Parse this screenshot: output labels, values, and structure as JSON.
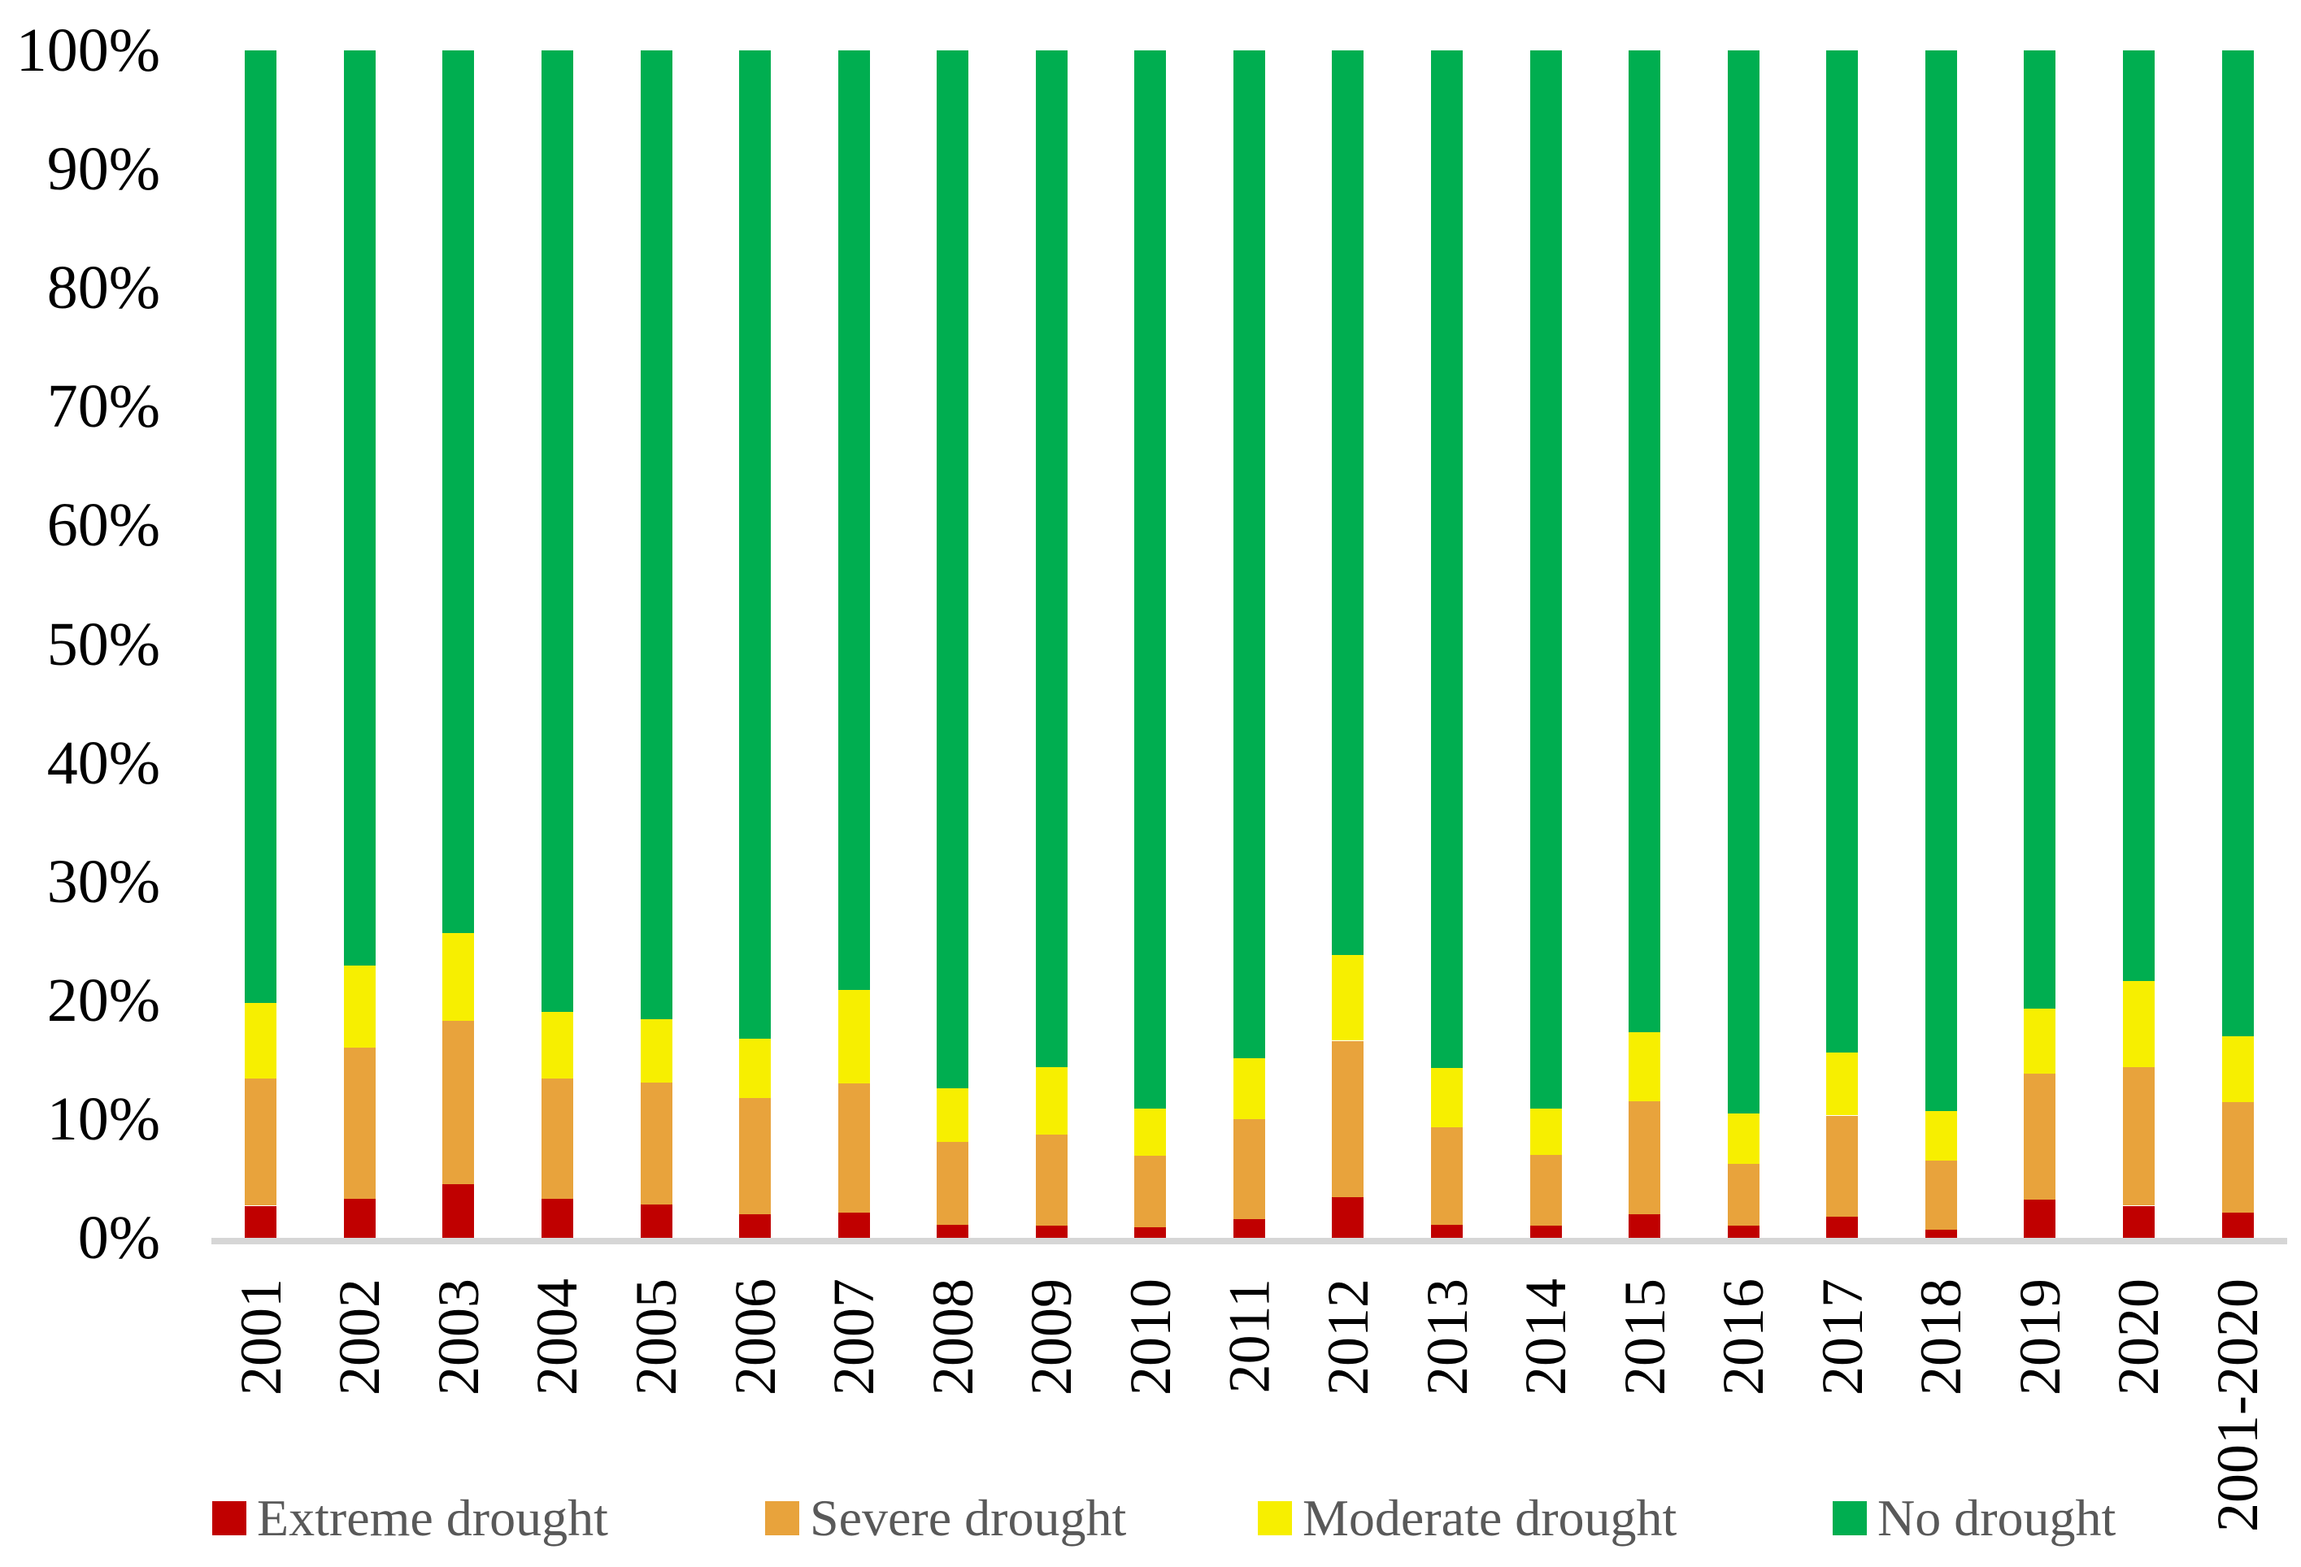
{
  "figure": {
    "kind": "100% stacked column chart",
    "title": "",
    "background": "#ffffff",
    "axis_line_color": "#D6D6D6",
    "text_color": "#000000",
    "legend_text_color": "#595959"
  },
  "y_axis": {
    "ticks": [
      "0%",
      "10%",
      "20%",
      "30%",
      "40%",
      "50%",
      "60%",
      "70%",
      "80%",
      "90%",
      "100%"
    ]
  },
  "legend": {
    "items": [
      {
        "label": "Extreme drought",
        "color": "#C00000"
      },
      {
        "label": "Severe drought",
        "color": "#E8A33C"
      },
      {
        "label": "Moderate drought",
        "color": "#F7EF00"
      },
      {
        "label": "No drought",
        "color": "#00AE50"
      }
    ]
  },
  "chart_data": {
    "type": "bar",
    "stacked": true,
    "units": "percent",
    "ylim": [
      0,
      100
    ],
    "y_tick_step": 10,
    "grid": false,
    "legend_position": "bottom",
    "xlabel": "",
    "ylabel": "",
    "categories": [
      "2001",
      "2002",
      "2003",
      "2004",
      "2005",
      "2006",
      "2007",
      "2008",
      "2009",
      "2010",
      "2011",
      "2012",
      "2013",
      "2014",
      "2015",
      "2016",
      "2017",
      "2018",
      "2019",
      "2020",
      "2001-2020"
    ],
    "series": [
      {
        "name": "Extreme drought",
        "color": "#C00000",
        "values": [
          2.7,
          3.3,
          4.5,
          3.3,
          2.8,
          2.0,
          2.1,
          1.1,
          1.0,
          0.9,
          1.6,
          3.4,
          1.1,
          1.0,
          2.0,
          1.0,
          1.8,
          0.7,
          3.2,
          2.7,
          2.1
        ]
      },
      {
        "name": "Severe drought",
        "color": "#E8A33C",
        "values": [
          10.7,
          12.7,
          13.8,
          10.1,
          10.3,
          9.8,
          10.9,
          7.0,
          7.7,
          6.0,
          8.4,
          13.2,
          8.2,
          6.0,
          9.5,
          5.2,
          8.5,
          5.8,
          10.6,
          11.7,
          9.3
        ]
      },
      {
        "name": "Moderate drought",
        "color": "#F7EF00",
        "values": [
          6.4,
          6.9,
          7.4,
          5.6,
          5.3,
          5.0,
          7.9,
          4.5,
          5.7,
          4.0,
          5.1,
          7.2,
          5.0,
          3.9,
          5.8,
          4.3,
          5.3,
          4.2,
          5.5,
          7.2,
          5.6
        ]
      },
      {
        "name": "No drought",
        "color": "#00AE50",
        "values": [
          80.2,
          77.1,
          74.3,
          81.0,
          81.6,
          83.2,
          79.1,
          87.4,
          85.6,
          89.1,
          84.9,
          76.2,
          85.7,
          89.1,
          82.7,
          89.5,
          84.4,
          89.3,
          80.7,
          78.4,
          83.0
        ]
      }
    ]
  }
}
